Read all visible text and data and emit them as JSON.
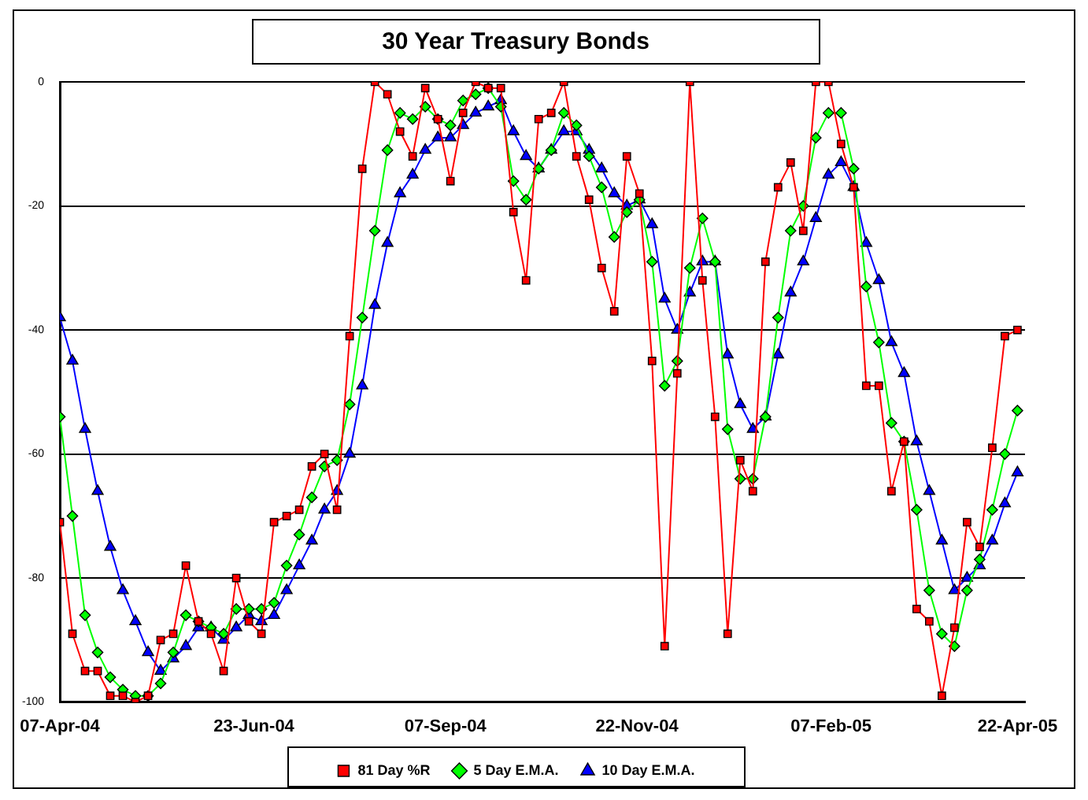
{
  "chart_data": {
    "type": "line",
    "title": "30 Year Treasury Bonds",
    "x": [
      "2004-04-07",
      "2004-04-12",
      "2004-04-17",
      "2004-04-22",
      "2004-04-27",
      "2004-05-02",
      "2004-05-07",
      "2004-05-12",
      "2004-05-17",
      "2004-05-22",
      "2004-05-27",
      "2004-06-01",
      "2004-06-06",
      "2004-06-11",
      "2004-06-16",
      "2004-06-21",
      "2004-06-26",
      "2004-07-01",
      "2004-07-06",
      "2004-07-11",
      "2004-07-16",
      "2004-07-21",
      "2004-07-26",
      "2004-07-31",
      "2004-08-05",
      "2004-08-10",
      "2004-08-15",
      "2004-08-20",
      "2004-08-25",
      "2004-08-30",
      "2004-09-04",
      "2004-09-09",
      "2004-09-14",
      "2004-09-19",
      "2004-09-24",
      "2004-09-29",
      "2004-10-04",
      "2004-10-09",
      "2004-10-14",
      "2004-10-19",
      "2004-10-24",
      "2004-10-29",
      "2004-11-03",
      "2004-11-08",
      "2004-11-13",
      "2004-11-18",
      "2004-11-23",
      "2004-11-28",
      "2004-12-03",
      "2004-12-08",
      "2004-12-13",
      "2004-12-18",
      "2004-12-23",
      "2004-12-28",
      "2005-01-02",
      "2005-01-07",
      "2005-01-12",
      "2005-01-17",
      "2005-01-22",
      "2005-01-27",
      "2005-02-01",
      "2005-02-06",
      "2005-02-11",
      "2005-02-16",
      "2005-02-21",
      "2005-02-26",
      "2005-03-03",
      "2005-03-08",
      "2005-03-13",
      "2005-03-18",
      "2005-03-23",
      "2005-03-28",
      "2005-04-02",
      "2005-04-07",
      "2005-04-12",
      "2005-04-17",
      "2005-04-22"
    ],
    "series": [
      {
        "name": "81 Day %R",
        "color": "#ff0000",
        "marker": "square",
        "values": [
          -71,
          -89,
          -95,
          -95,
          -99,
          -99,
          -100,
          -99,
          -90,
          -89,
          -78,
          -87,
          -89,
          -95,
          -80,
          -87,
          -89,
          -71,
          -70,
          -69,
          -62,
          -60,
          -69,
          -41,
          -14,
          0,
          -2,
          -8,
          -12,
          -1,
          -6,
          -16,
          -5,
          0,
          -1,
          -1,
          -21,
          -32,
          -6,
          -5,
          0,
          -12,
          -19,
          -30,
          -37,
          -12,
          -18,
          -45,
          -91,
          -47,
          0,
          -32,
          -54,
          -89,
          -61,
          -66,
          -29,
          -17,
          -13,
          -24,
          0,
          0,
          -10,
          -17,
          -49,
          -49,
          -66,
          -58,
          -85,
          -87,
          -99,
          -88,
          -71,
          -75,
          -59,
          -41,
          -40
        ]
      },
      {
        "name": "5 Day E.M.A.",
        "color": "#00ff00",
        "marker": "diamond",
        "values": [
          -54,
          -70,
          -86,
          -92,
          -96,
          -98,
          -99,
          -99,
          -97,
          -92,
          -86,
          -87,
          -88,
          -89,
          -85,
          -85,
          -85,
          -84,
          -78,
          -73,
          -67,
          -62,
          -61,
          -52,
          -38,
          -24,
          -11,
          -5,
          -6,
          -4,
          -6,
          -7,
          -3,
          -2,
          -1,
          -4,
          -16,
          -19,
          -14,
          -11,
          -5,
          -7,
          -12,
          -17,
          -25,
          -21,
          -19,
          -29,
          -49,
          -45,
          -30,
          -22,
          -29,
          -56,
          -64,
          -64,
          -54,
          -38,
          -24,
          -20,
          -9,
          -5,
          -5,
          -14,
          -33,
          -42,
          -55,
          -58,
          -69,
          -82,
          -89,
          -91,
          -82,
          -77,
          -69,
          -60,
          -53
        ]
      },
      {
        "name": "10 Day E.M.A.",
        "color": "#0000ff",
        "marker": "triangle",
        "values": [
          -38,
          -45,
          -56,
          -66,
          -75,
          -82,
          -87,
          -92,
          -95,
          -93,
          -91,
          -88,
          -88,
          -90,
          -88,
          -86,
          -87,
          -86,
          -82,
          -78,
          -74,
          -69,
          -66,
          -60,
          -49,
          -36,
          -26,
          -18,
          -15,
          -11,
          -9,
          -9,
          -7,
          -5,
          -4,
          -3,
          -8,
          -12,
          -14,
          -11,
          -8,
          -8,
          -11,
          -14,
          -18,
          -20,
          -19,
          -23,
          -35,
          -40,
          -34,
          -29,
          -29,
          -44,
          -52,
          -56,
          -54,
          -44,
          -34,
          -29,
          -22,
          -15,
          -13,
          -17,
          -26,
          -32,
          -42,
          -47,
          -58,
          -66,
          -74,
          -82,
          -80,
          -78,
          -74,
          -68,
          -63
        ]
      }
    ],
    "xlim": [
      "2004-04-07",
      "2005-04-25"
    ],
    "xticks": [
      {
        "value": "2004-04-07",
        "label": "07-Apr-04"
      },
      {
        "value": "2004-06-23",
        "label": "23-Jun-04"
      },
      {
        "value": "2004-09-07",
        "label": "07-Sep-04"
      },
      {
        "value": "2004-11-22",
        "label": "22-Nov-04"
      },
      {
        "value": "2005-02-07",
        "label": "07-Feb-05"
      },
      {
        "value": "2005-04-22",
        "label": "22-Apr-05"
      }
    ],
    "ylim": [
      -100,
      0
    ],
    "yticks": [
      -100,
      -80,
      -60,
      -40,
      -20,
      0
    ],
    "grid": "y",
    "legend": "bottom",
    "line_style": "solid"
  }
}
